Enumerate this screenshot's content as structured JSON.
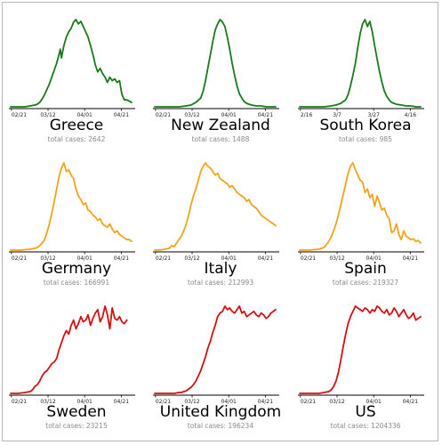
{
  "chart_data": [
    {
      "type": "line",
      "title": "Greece",
      "subtitle": "total cases: 2642",
      "color": "#1a7a1a",
      "tick_labels": [
        "02/21",
        "03/12",
        "04/01",
        "04/21"
      ],
      "x": [
        0,
        4,
        8,
        12,
        16,
        20,
        22,
        24,
        26,
        28,
        30,
        32,
        34,
        36,
        38,
        40,
        41,
        42,
        44,
        46,
        48,
        50,
        52,
        54,
        56,
        58,
        60,
        62,
        64,
        66,
        68,
        70,
        72,
        74,
        76,
        78,
        80,
        82,
        84,
        86,
        88,
        90,
        92,
        94,
        96,
        100
      ],
      "y": [
        0,
        0,
        0,
        0,
        1,
        2,
        3,
        5,
        9,
        14,
        20,
        26,
        34,
        42,
        50,
        60,
        66,
        56,
        70,
        80,
        86,
        90,
        97,
        100,
        95,
        98,
        92,
        86,
        80,
        70,
        60,
        48,
        40,
        44,
        38,
        34,
        28,
        34,
        30,
        32,
        28,
        30,
        14,
        8,
        8,
        5
      ]
    },
    {
      "type": "line",
      "title": "New Zealand",
      "subtitle": "total cases: 1488",
      "color": "#1a7a1a",
      "tick_labels": [
        "02/21",
        "03/12",
        "04/01",
        "04/21"
      ],
      "x": [
        0,
        10,
        20,
        26,
        30,
        34,
        38,
        40,
        42,
        44,
        46,
        48,
        50,
        52,
        54,
        56,
        58,
        60,
        62,
        64,
        66,
        68,
        70,
        72,
        74,
        76,
        78,
        80,
        84,
        88,
        92,
        96,
        100
      ],
      "y": [
        0,
        0,
        0,
        1,
        2,
        5,
        10,
        18,
        30,
        45,
        60,
        75,
        88,
        95,
        100,
        97,
        92,
        80,
        66,
        50,
        36,
        24,
        15,
        10,
        6,
        4,
        3,
        2,
        1,
        1,
        0,
        0,
        0
      ]
    },
    {
      "type": "line",
      "title": "South Korea",
      "subtitle": "total cases: 985",
      "color": "#1a7a1a",
      "tick_labels": [
        "2/16",
        "3/7",
        "3/27",
        "4/16"
      ],
      "x": [
        0,
        10,
        20,
        26,
        30,
        34,
        38,
        40,
        42,
        44,
        46,
        48,
        50,
        52,
        54,
        56,
        58,
        60,
        62,
        64,
        66,
        68,
        70,
        72,
        74,
        76,
        78,
        80,
        84,
        88,
        92,
        96,
        100
      ],
      "y": [
        0,
        0,
        0,
        1,
        2,
        4,
        8,
        14,
        24,
        36,
        50,
        68,
        84,
        95,
        100,
        92,
        98,
        86,
        70,
        55,
        40,
        28,
        18,
        12,
        8,
        5,
        4,
        3,
        2,
        1,
        1,
        0,
        0
      ]
    },
    {
      "type": "line",
      "title": "Germany",
      "subtitle": "total cases: 166991",
      "color": "#f2a31b",
      "tick_labels": [
        "02/21",
        "03/12",
        "04/01",
        "04/21"
      ],
      "x": [
        0,
        8,
        16,
        20,
        22,
        24,
        26,
        28,
        30,
        32,
        34,
        36,
        38,
        40,
        42,
        44,
        46,
        48,
        50,
        52,
        54,
        56,
        58,
        60,
        62,
        64,
        66,
        68,
        70,
        72,
        74,
        76,
        78,
        80,
        82,
        84,
        86,
        88,
        90,
        92,
        94,
        96,
        98,
        100
      ],
      "y": [
        0,
        0,
        1,
        2,
        3,
        5,
        8,
        12,
        20,
        30,
        42,
        56,
        70,
        84,
        94,
        100,
        90,
        92,
        86,
        82,
        70,
        62,
        58,
        52,
        54,
        46,
        44,
        40,
        38,
        34,
        36,
        30,
        28,
        26,
        30,
        24,
        20,
        22,
        18,
        16,
        14,
        12,
        12,
        10
      ]
    },
    {
      "type": "line",
      "title": "Italy",
      "subtitle": "total cases: 212993",
      "color": "#f2a31b",
      "tick_labels": [
        "02/21",
        "03/12",
        "04/01",
        "04/21"
      ],
      "x": [
        0,
        4,
        8,
        12,
        14,
        16,
        18,
        20,
        22,
        24,
        26,
        28,
        30,
        32,
        34,
        36,
        38,
        40,
        42,
        44,
        46,
        48,
        50,
        52,
        54,
        56,
        58,
        60,
        62,
        64,
        66,
        68,
        70,
        72,
        74,
        76,
        78,
        80,
        82,
        84,
        86,
        88,
        90,
        92,
        94,
        96,
        98,
        100
      ],
      "y": [
        0,
        0,
        1,
        2,
        5,
        4,
        8,
        12,
        16,
        22,
        30,
        40,
        52,
        62,
        70,
        80,
        90,
        96,
        100,
        96,
        94,
        90,
        86,
        88,
        82,
        80,
        78,
        76,
        72,
        74,
        70,
        66,
        64,
        62,
        60,
        56,
        58,
        52,
        50,
        48,
        44,
        40,
        38,
        36,
        34,
        32,
        30,
        28
      ]
    },
    {
      "type": "line",
      "title": "Spain",
      "subtitle": "total cases: 219327",
      "color": "#f2a31b",
      "tick_labels": [
        "02/21",
        "03/12",
        "04/01",
        "04/21"
      ],
      "x": [
        0,
        8,
        16,
        20,
        22,
        24,
        26,
        28,
        30,
        32,
        34,
        36,
        38,
        40,
        42,
        44,
        46,
        48,
        50,
        52,
        54,
        56,
        58,
        60,
        62,
        64,
        66,
        68,
        70,
        72,
        74,
        76,
        78,
        80,
        82,
        84,
        86,
        88,
        90,
        92,
        94,
        96,
        98,
        100
      ],
      "y": [
        0,
        0,
        1,
        3,
        6,
        10,
        15,
        22,
        30,
        40,
        52,
        64,
        76,
        88,
        96,
        100,
        92,
        86,
        80,
        78,
        66,
        70,
        60,
        64,
        50,
        62,
        54,
        46,
        48,
        40,
        36,
        20,
        22,
        30,
        18,
        12,
        22,
        16,
        14,
        12,
        13,
        10,
        11,
        8
      ]
    },
    {
      "type": "line",
      "title": "Sweden",
      "subtitle": "total cases: 23215",
      "color": "#d41111",
      "tick_labels": [
        "02/21",
        "03/12",
        "04/01",
        "04/21"
      ],
      "x": [
        0,
        6,
        12,
        16,
        18,
        20,
        22,
        24,
        26,
        28,
        30,
        32,
        34,
        36,
        38,
        40,
        42,
        44,
        46,
        48,
        50,
        52,
        54,
        56,
        58,
        60,
        62,
        64,
        66,
        68,
        70,
        72,
        74,
        76,
        78,
        80,
        82,
        84,
        86,
        88,
        90,
        92,
        94,
        96
      ],
      "y": [
        0,
        0,
        1,
        2,
        4,
        8,
        10,
        14,
        20,
        24,
        26,
        30,
        34,
        36,
        40,
        50,
        58,
        66,
        72,
        68,
        78,
        84,
        74,
        80,
        88,
        82,
        84,
        90,
        78,
        86,
        92,
        96,
        82,
        88,
        100,
        90,
        74,
        98,
        86,
        84,
        88,
        82,
        80,
        84
      ]
    },
    {
      "type": "line",
      "title": "United Kingdom",
      "subtitle": "total cases: 196234",
      "color": "#d41111",
      "tick_labels": [
        "02/21",
        "03/12",
        "04/01",
        "04/21"
      ],
      "x": [
        0,
        8,
        16,
        20,
        22,
        24,
        26,
        28,
        30,
        32,
        34,
        36,
        38,
        40,
        42,
        44,
        46,
        48,
        50,
        52,
        54,
        56,
        58,
        60,
        62,
        64,
        66,
        68,
        70,
        72,
        74,
        76,
        78,
        80,
        82,
        84,
        86,
        88,
        90,
        92,
        94,
        96,
        98,
        100
      ],
      "y": [
        0,
        0,
        0,
        1,
        1,
        2,
        3,
        5,
        7,
        10,
        14,
        20,
        26,
        34,
        42,
        52,
        60,
        70,
        78,
        88,
        92,
        94,
        100,
        96,
        98,
        94,
        92,
        96,
        100,
        92,
        94,
        88,
        90,
        92,
        94,
        90,
        88,
        92,
        90,
        86,
        88,
        92,
        94,
        96
      ]
    },
    {
      "type": "line",
      "title": "US",
      "subtitle": "total cases: 1204336",
      "color": "#d41111",
      "tick_labels": [
        "02/21",
        "03/12",
        "04/01",
        "04/21"
      ],
      "x": [
        0,
        8,
        16,
        20,
        24,
        26,
        28,
        30,
        32,
        34,
        36,
        38,
        40,
        42,
        44,
        46,
        48,
        50,
        52,
        54,
        56,
        58,
        60,
        62,
        64,
        66,
        68,
        70,
        72,
        74,
        76,
        78,
        80,
        82,
        84,
        86,
        88,
        90,
        92,
        94,
        96,
        98,
        100
      ],
      "y": [
        0,
        0,
        0,
        1,
        2,
        4,
        8,
        14,
        24,
        38,
        54,
        68,
        80,
        88,
        94,
        100,
        98,
        96,
        94,
        98,
        96,
        92,
        96,
        94,
        100,
        98,
        94,
        92,
        96,
        90,
        92,
        98,
        94,
        88,
        92,
        96,
        90,
        86,
        88,
        92,
        84,
        86,
        88
      ]
    }
  ]
}
